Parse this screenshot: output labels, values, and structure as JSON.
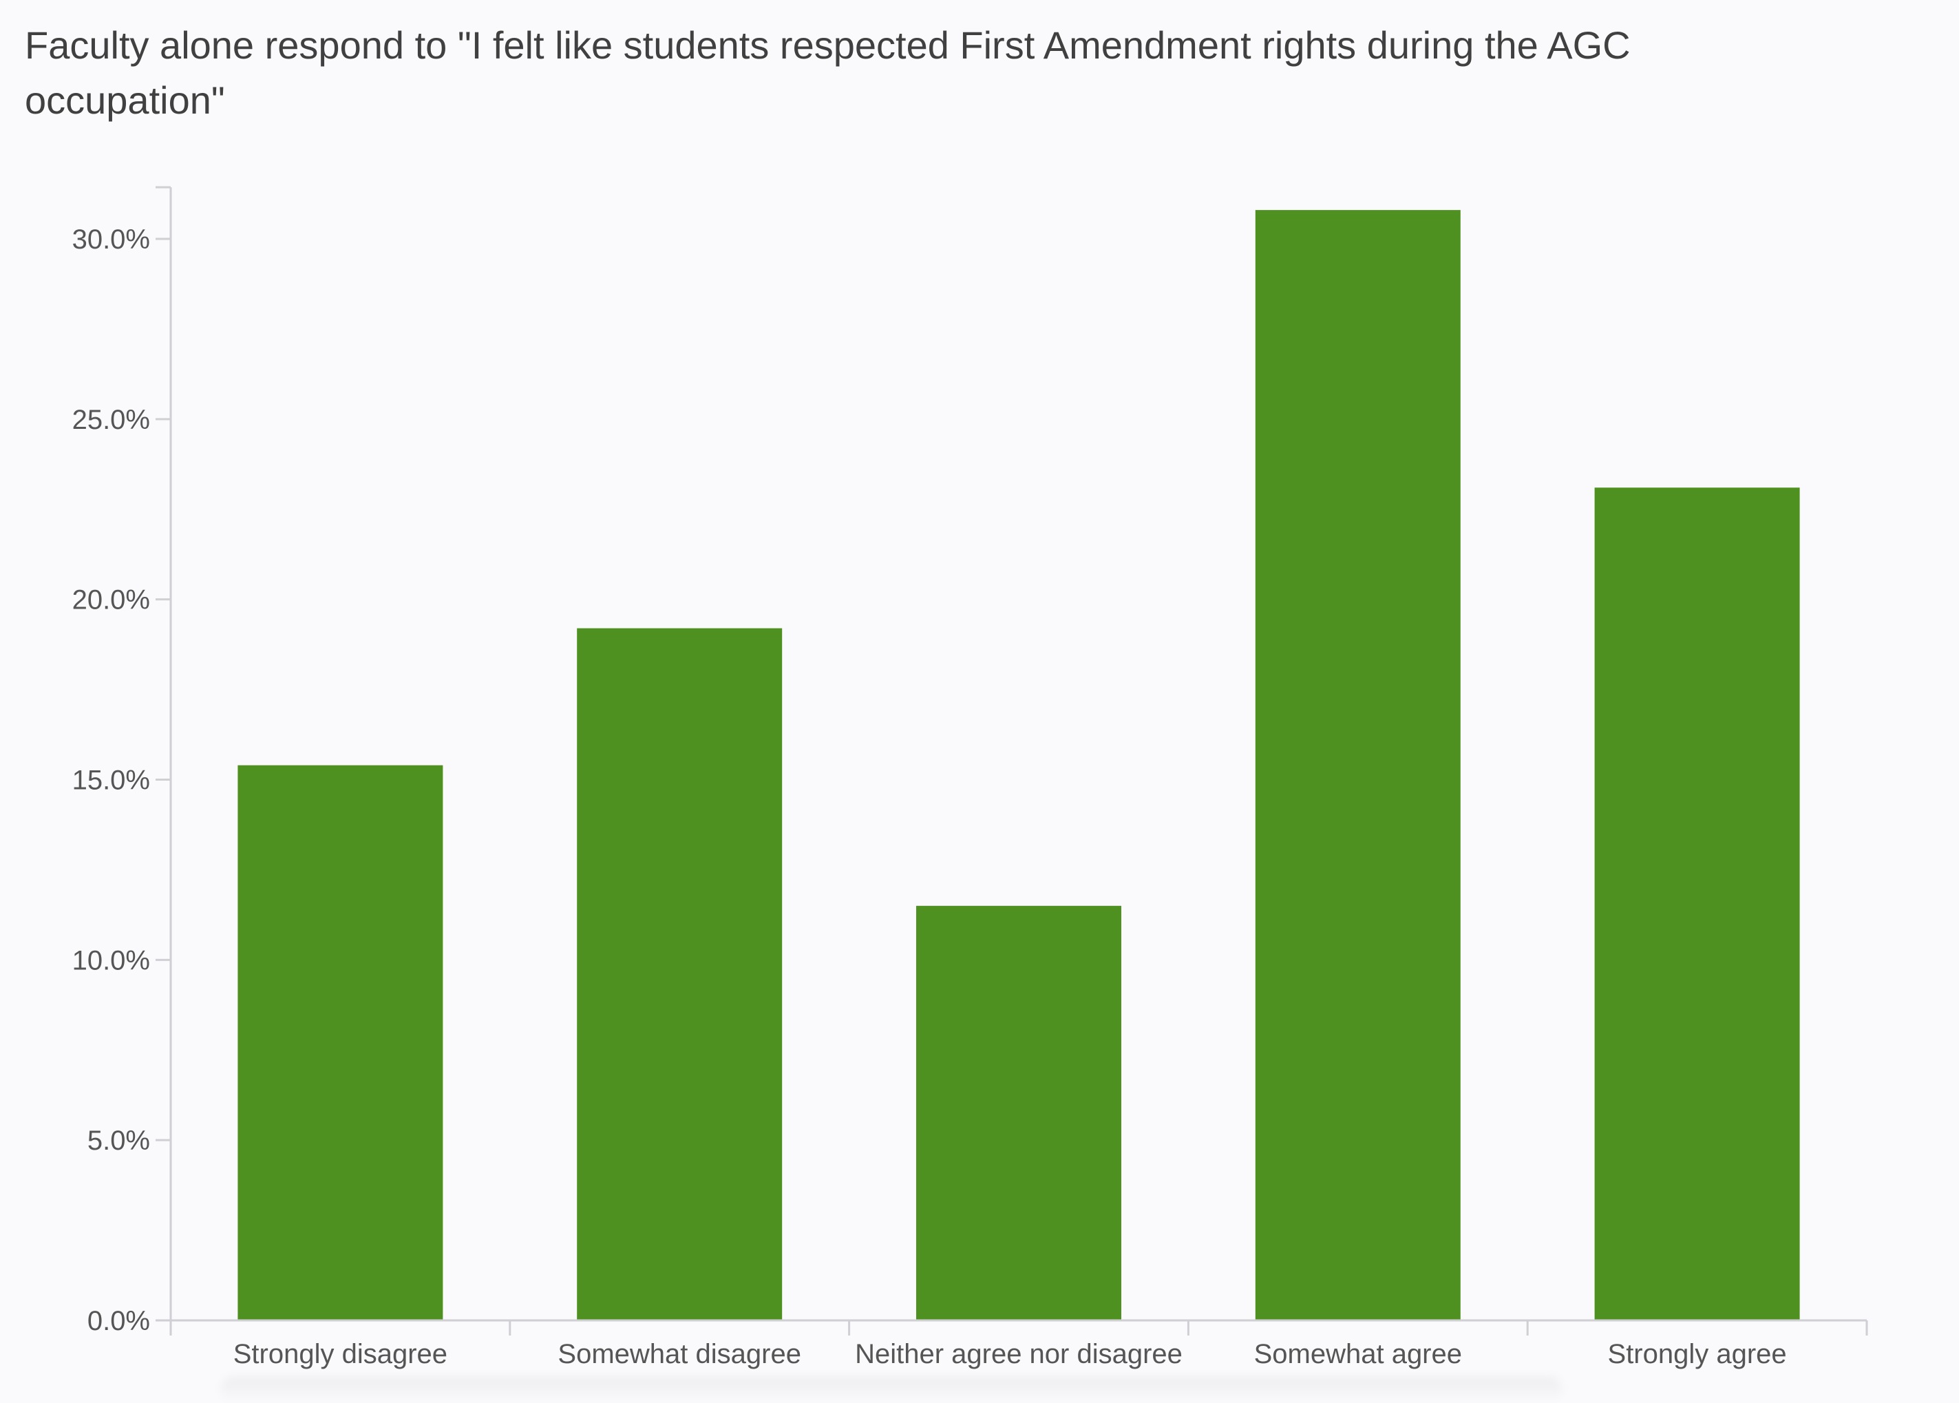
{
  "chart_data": {
    "type": "bar",
    "title": "Faculty alone respond to \"I felt like students respected First Amendment rights during the AGC occupation\"",
    "categories": [
      "Strongly disagree",
      "Somewhat disagree",
      "Neither agree nor disagree",
      "Somewhat agree",
      "Strongly agree"
    ],
    "values": [
      15.4,
      19.2,
      11.5,
      30.8,
      23.1
    ],
    "y_ticks": [
      "0.0%",
      "5.0%",
      "10.0%",
      "15.0%",
      "20.0%",
      "25.0%",
      "30.0%"
    ],
    "y_tick_values": [
      0,
      5,
      10,
      15,
      20,
      25,
      30
    ],
    "ylim": [
      0,
      31.5
    ],
    "xlabel": "",
    "ylabel": "",
    "grid": false,
    "legend": "none",
    "colors": {
      "bar": "#4f9120",
      "axis": "#cfcfd4",
      "text": "#555555"
    }
  }
}
